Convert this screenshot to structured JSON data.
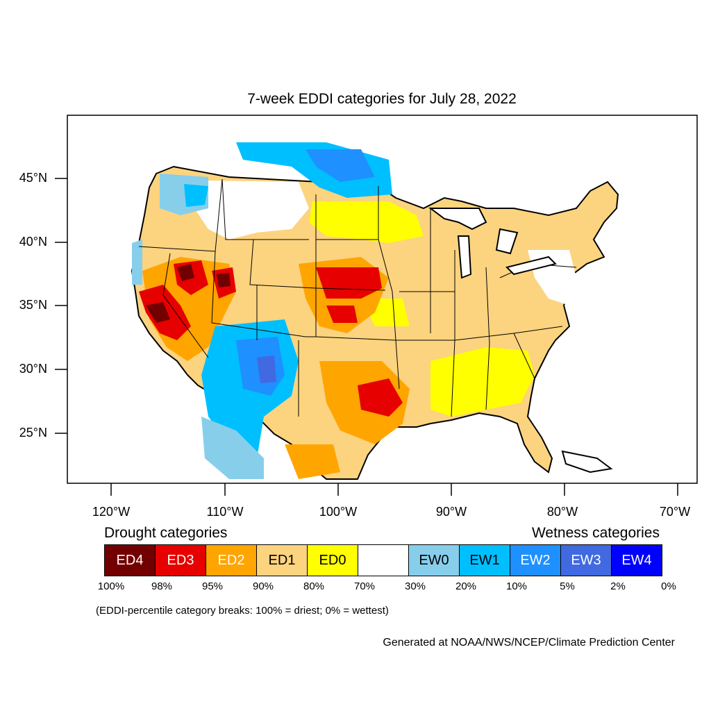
{
  "title": "7-week EDDI categories for July 28, 2022",
  "latitude_labels": [
    "45°N",
    "40°N",
    "35°N",
    "30°N",
    "25°N"
  ],
  "longitude_labels": [
    "120°W",
    "110°W",
    "100°W",
    "90°W",
    "80°W",
    "70°W"
  ],
  "legend": {
    "drought_heading": "Drought categories",
    "wetness_heading": "Wetness categories",
    "categories": [
      {
        "label": "ED4",
        "color": "#730000",
        "text_color": "#ffffff"
      },
      {
        "label": "ED3",
        "color": "#e60000",
        "text_color": "#ffffff"
      },
      {
        "label": "ED2",
        "color": "#ffa500",
        "text_color": "#ffffff"
      },
      {
        "label": "ED1",
        "color": "#fcd37f",
        "text_color": "#000000"
      },
      {
        "label": "ED0",
        "color": "#ffff00",
        "text_color": "#000000"
      },
      {
        "label": "",
        "color": "#ffffff",
        "text_color": "#000000"
      },
      {
        "label": "EW0",
        "color": "#87ceeb",
        "text_color": "#000000"
      },
      {
        "label": "EW1",
        "color": "#00bfff",
        "text_color": "#000000"
      },
      {
        "label": "EW2",
        "color": "#1e90ff",
        "text_color": "#ffffff"
      },
      {
        "label": "EW3",
        "color": "#4169e1",
        "text_color": "#ffffff"
      },
      {
        "label": "EW4",
        "color": "#0000ff",
        "text_color": "#ffffff"
      }
    ],
    "percentile_breaks": [
      "100%",
      "98%",
      "95%",
      "90%",
      "80%",
      "70%",
      "30%",
      "20%",
      "10%",
      "5%",
      "2%",
      "0%"
    ]
  },
  "note": "(EDDI-percentile category breaks: 100% = driest; 0% = wettest)",
  "credit": "Generated at NOAA/NWS/NCEP/Climate Prediction Center"
}
